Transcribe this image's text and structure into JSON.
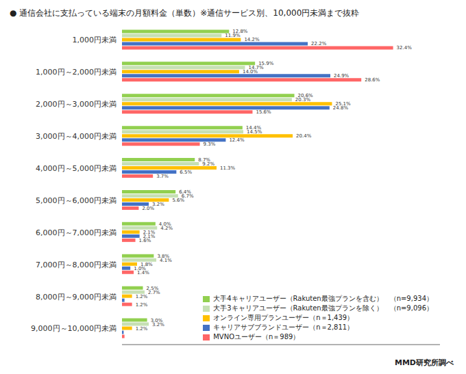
{
  "chart_data": {
    "type": "bar",
    "orientation": "horizontal",
    "title": "● 通信会社に支払っている端末の月額料金（単数）※通信サービス別、10,000円未満まで抜粋",
    "categories": [
      "1,000円未満",
      "1,000円～2,000円未満",
      "2,000円～3,000円未満",
      "3,000円～4,000円未満",
      "4,000円～5,000円未満",
      "5,000円～6,000円未満",
      "6,000円～7,000円未満",
      "7,000円～8,000円未満",
      "8,000円～9,000円未満",
      "9,000円～10,000円未満"
    ],
    "series": [
      {
        "name": "大手4キャリアユーザー（Rakuten最強プランを含む）　（n=9,934）",
        "color": "#92D050",
        "values": [
          12.8,
          15.9,
          20.6,
          14.4,
          8.7,
          6.4,
          4.0,
          3.8,
          2.5,
          3.0
        ],
        "value_labels": [
          "12.8%",
          "15.9%",
          "20.6%",
          "14.4%",
          "8.7%",
          "6.4%",
          "4.0%",
          "3.8%",
          "2.5%",
          "3.0%"
        ]
      },
      {
        "name": "大手3キャリアユーザー（Rakuten最強プランを除く）　（n=9,096）",
        "color": "#C6E0B4",
        "values": [
          11.9,
          14.7,
          20.3,
          14.5,
          9.2,
          6.7,
          4.2,
          4.1,
          2.7,
          3.2
        ],
        "value_labels": [
          "11.9%",
          "14.7%",
          "20.3%",
          "14.5%",
          "9.2%",
          "6.7%",
          "4.2%",
          "4.1%",
          "2.7%",
          "3.2%"
        ]
      },
      {
        "name": "オンライン専用プランユーザー（n＝1,439）",
        "color": "#FFC000",
        "values": [
          14.2,
          14.0,
          25.1,
          20.4,
          11.3,
          5.6,
          2.1,
          1.8,
          1.2,
          1.2
        ],
        "value_labels": [
          "14.2%",
          "14.0%",
          "25.1%",
          "20.4%",
          "11.3%",
          "5.6%",
          "2.1%",
          "1.8%",
          "1.2%",
          "1.2%"
        ]
      },
      {
        "name": "キャリアサブブランドユーザー（n＝2,811）",
        "color": "#4472C4",
        "values": [
          22.2,
          24.9,
          24.8,
          12.4,
          6.5,
          3.2,
          2.1,
          1.0,
          0.3,
          0.2
        ],
        "value_labels": [
          "22.2%",
          "24.9%",
          "24.8%",
          "12.4%",
          "6.5%",
          "3.2%",
          "2.1%",
          "1.0%",
          null,
          null
        ]
      },
      {
        "name": "MVNOユーザー（n＝989）",
        "color": "#FF6666",
        "values": [
          32.4,
          28.6,
          15.6,
          9.3,
          3.7,
          2.0,
          1.6,
          1.4,
          1.2,
          0.3
        ],
        "value_labels": [
          "32.4%",
          "28.6%",
          "15.6%",
          "9.3%",
          "3.7%",
          "2.0%",
          "1.6%",
          "1.4%",
          "1.2%",
          null
        ]
      }
    ],
    "xlim": [
      0,
      38
    ],
    "tick_labels": "y",
    "grid": false,
    "legend": "lower right",
    "data_labels": true,
    "annotations": [
      "MMD研究所調べ"
    ]
  }
}
